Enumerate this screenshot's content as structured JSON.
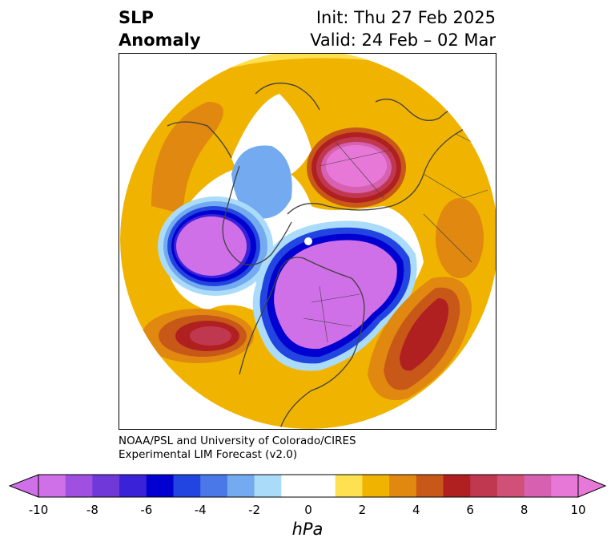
{
  "title": {
    "left_line1": "SLP",
    "left_line2": "Anomaly",
    "right_line1": "Init: Thu 27 Feb 2025",
    "right_line2": "Valid: 24 Feb – 02 Mar"
  },
  "credit": {
    "line1": "NOAA/PSL and University of Colorado/CIRES",
    "line2": "Experimental LIM Forecast (v2.0)"
  },
  "colorbar": {
    "units": "hPa",
    "ticks": [
      "-10",
      "-8",
      "-6",
      "-4",
      "-2",
      "0",
      "2",
      "4",
      "6",
      "8",
      "10"
    ],
    "colors": [
      "#d070e8",
      "#a050e0",
      "#7038d8",
      "#3a22d8",
      "#0000d0",
      "#2244e0",
      "#4a78e8",
      "#74aaf0",
      "#aadcfa",
      "#ffffff",
      "#ffffff",
      "#ffe050",
      "#f0b400",
      "#e08810",
      "#c85818",
      "#b02020",
      "#c03850",
      "#d05078",
      "#d860b0",
      "#e878d8"
    ],
    "under_color": "#d070e8",
    "over_color": "#e878d8"
  },
  "map": {
    "projection": "north-polar-stereographic"
  }
}
